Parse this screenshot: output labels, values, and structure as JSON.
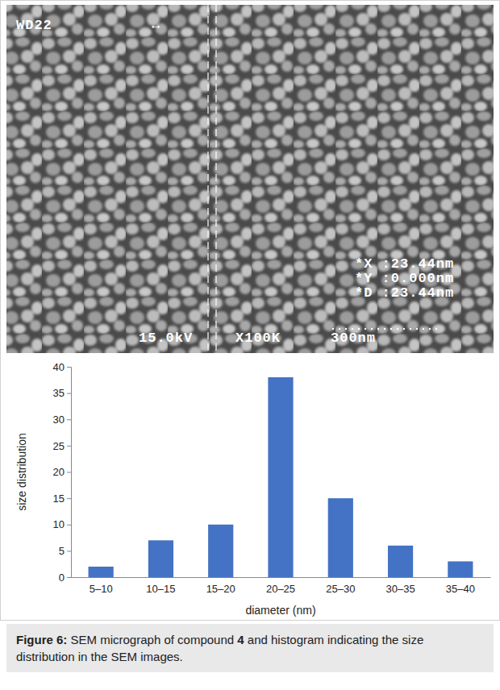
{
  "micrograph": {
    "labels": [
      "WD22",
      "↔",
      "*X :23.44nm",
      "*Y :0.000nm",
      "*D :23.44nm",
      "15.0kV",
      "X100K",
      "300nm"
    ]
  },
  "chart_data": {
    "type": "bar",
    "categories": [
      "5–10",
      "10–15",
      "15–20",
      "20–25",
      "25–30",
      "30–35",
      "35–40"
    ],
    "values": [
      2,
      7,
      10,
      38,
      15,
      6,
      3
    ],
    "color": "#4472c4",
    "ylim": [
      0,
      40
    ],
    "yticks": [
      0,
      5,
      10,
      15,
      20,
      25,
      30,
      35,
      40
    ],
    "xlabel": "diameter (nm)",
    "ylabel": "size distribution",
    "grid": false
  },
  "caption": {
    "parts": [
      "Figure 6:",
      "SEM micrograph of compound",
      "4",
      "and histogram indicating the size distribution in the SEM images."
    ]
  }
}
